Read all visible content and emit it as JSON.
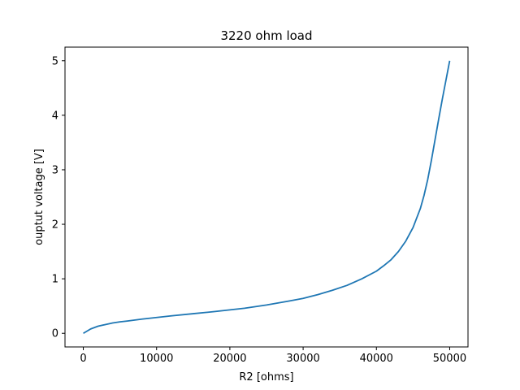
{
  "chart_data": {
    "type": "line",
    "title": "3220 ohm load",
    "xlabel": "R2 [ohms]",
    "ylabel": "ouptut voltage [V]",
    "xlim": [
      -2500,
      52500
    ],
    "ylim": [
      -0.25,
      5.25
    ],
    "xticks": [
      0,
      10000,
      20000,
      30000,
      40000,
      50000
    ],
    "xtick_labels": [
      "0",
      "10000",
      "20000",
      "30000",
      "40000",
      "50000"
    ],
    "yticks": [
      0,
      1,
      2,
      3,
      4,
      5
    ],
    "ytick_labels": [
      "0",
      "1",
      "2",
      "3",
      "4",
      "5"
    ],
    "grid": false,
    "series": [
      {
        "color": "#1f77b4",
        "x": [
          0,
          1000,
          2000,
          3000,
          4000,
          5000,
          6000,
          8000,
          10000,
          12000,
          15000,
          18000,
          20000,
          22000,
          25000,
          28000,
          30000,
          32000,
          34000,
          36000,
          38000,
          40000,
          41000,
          42000,
          43000,
          44000,
          45000,
          46000,
          46500,
          47000,
          47500,
          48000,
          48500,
          49000,
          49500,
          50000
        ],
        "y": [
          0.0,
          0.08,
          0.13,
          0.16,
          0.19,
          0.21,
          0.225,
          0.26,
          0.29,
          0.32,
          0.36,
          0.4,
          0.43,
          0.46,
          0.52,
          0.59,
          0.64,
          0.71,
          0.79,
          0.88,
          1.0,
          1.14,
          1.24,
          1.35,
          1.5,
          1.69,
          1.94,
          2.29,
          2.53,
          2.82,
          3.17,
          3.55,
          3.93,
          4.3,
          4.65,
          5.0
        ]
      }
    ]
  }
}
